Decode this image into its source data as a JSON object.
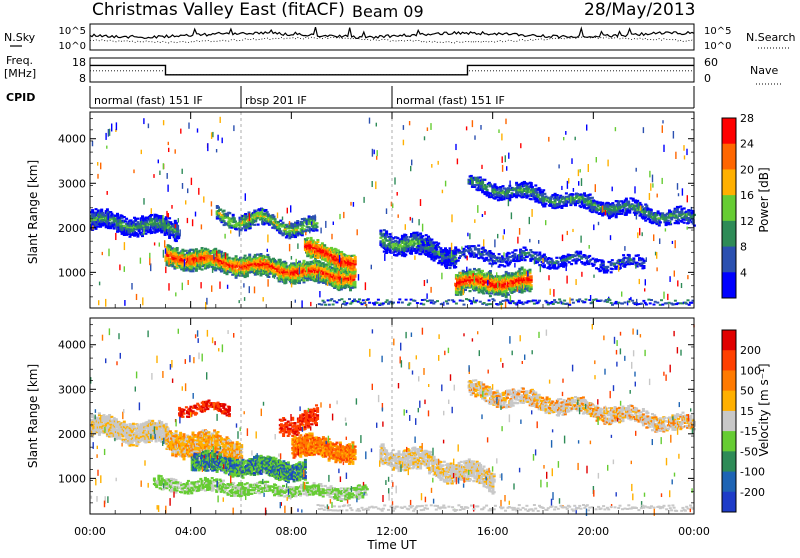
{
  "header": {
    "station": "Christmas Valley East (fitACF)",
    "beam": "Beam 09",
    "date": "28/May/2013"
  },
  "noise_panel": {
    "left_label": "N.Sky",
    "left_ticks": [
      "10^5",
      "10^0"
    ],
    "right_label": "N.Search",
    "right_ticks": [
      "10^5",
      "10^0"
    ]
  },
  "freq_panel": {
    "left_label_1": "Freq.",
    "left_label_2": "[MHz]",
    "left_ticks": [
      "18",
      "8"
    ],
    "right_label": "Nave",
    "right_ticks": [
      "60",
      "0"
    ]
  },
  "cpid": {
    "label": "CPID",
    "segments": [
      {
        "name": "normal (fast) 151 IF",
        "start_hr": 0,
        "end_hr": 6
      },
      {
        "name": "rbsp 201 IF",
        "start_hr": 6,
        "end_hr": 12
      },
      {
        "name": "normal (fast) 151 IF",
        "start_hr": 12,
        "end_hr": 24
      }
    ]
  },
  "chart_data": [
    {
      "type": "heatmap",
      "name": "power",
      "ylabel": "Slant Range [km]",
      "yticks": [
        "1000",
        "2000",
        "3000",
        "4000"
      ],
      "ylim": [
        200,
        4600
      ],
      "colorbar_label": "Power [dB]",
      "colorbar_ticks": [
        "4",
        "8",
        "12",
        "16",
        "20",
        "24",
        "28"
      ],
      "colors": [
        "#0000ff",
        "#2b50b0",
        "#2e8b57",
        "#66cc33",
        "#ffb000",
        "#ff6600",
        "#ff0000"
      ]
    },
    {
      "type": "heatmap",
      "name": "velocity",
      "ylabel": "Slant Range [km]",
      "yticks": [
        "1000",
        "2000",
        "3000",
        "4000"
      ],
      "ylim": [
        200,
        4600
      ],
      "colorbar_label": "Velocity [m s⁻¹]",
      "colorbar_ticks": [
        "200",
        "100",
        "50",
        "15",
        "-15",
        "-50",
        "-100",
        "-200"
      ],
      "colors": [
        "#1e3cc8",
        "#1e64b4",
        "#2e8b57",
        "#66cc33",
        "#c8c8c8",
        "#ffb000",
        "#ff7a00",
        "#ff4000",
        "#e00000"
      ]
    }
  ],
  "xaxis": {
    "label": "Time UT",
    "ticks": [
      "00:00",
      "04:00",
      "08:00",
      "12:00",
      "16:00",
      "20:00",
      "00:00"
    ]
  }
}
